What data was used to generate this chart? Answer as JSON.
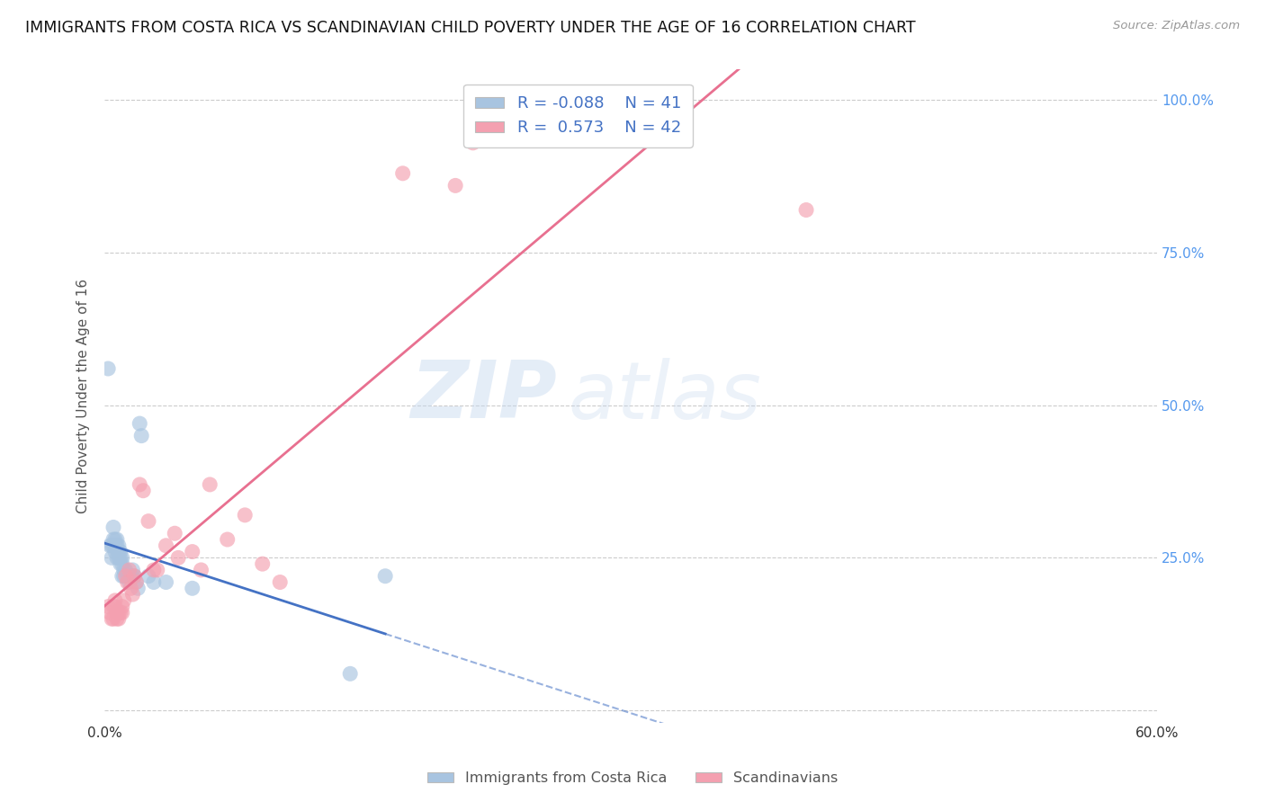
{
  "title": "IMMIGRANTS FROM COSTA RICA VS SCANDINAVIAN CHILD POVERTY UNDER THE AGE OF 16 CORRELATION CHART",
  "source": "Source: ZipAtlas.com",
  "ylabel": "Child Poverty Under the Age of 16",
  "xlim": [
    0.0,
    0.6
  ],
  "ylim": [
    -0.02,
    1.05
  ],
  "x_ticks": [
    0.0,
    0.1,
    0.2,
    0.3,
    0.4,
    0.5,
    0.6
  ],
  "x_tick_labels": [
    "0.0%",
    "",
    "",
    "",
    "",
    "",
    "60.0%"
  ],
  "y_ticks": [
    0.0,
    0.25,
    0.5,
    0.75,
    1.0
  ],
  "y_tick_labels_right": [
    "",
    "25.0%",
    "50.0%",
    "75.0%",
    "100.0%"
  ],
  "blue_R": "-0.088",
  "blue_N": "41",
  "pink_R": "0.573",
  "pink_N": "42",
  "blue_color": "#a8c4e0",
  "pink_color": "#f4a0b0",
  "blue_line_color": "#4472c4",
  "pink_line_color": "#e87090",
  "blue_scatter": [
    [
      0.002,
      0.56
    ],
    [
      0.003,
      0.27
    ],
    [
      0.004,
      0.27
    ],
    [
      0.004,
      0.25
    ],
    [
      0.005,
      0.3
    ],
    [
      0.005,
      0.28
    ],
    [
      0.005,
      0.27
    ],
    [
      0.006,
      0.28
    ],
    [
      0.006,
      0.27
    ],
    [
      0.006,
      0.26
    ],
    [
      0.007,
      0.28
    ],
    [
      0.007,
      0.27
    ],
    [
      0.007,
      0.25
    ],
    [
      0.008,
      0.27
    ],
    [
      0.008,
      0.26
    ],
    [
      0.008,
      0.25
    ],
    [
      0.009,
      0.26
    ],
    [
      0.009,
      0.25
    ],
    [
      0.009,
      0.24
    ],
    [
      0.01,
      0.25
    ],
    [
      0.01,
      0.24
    ],
    [
      0.01,
      0.22
    ],
    [
      0.011,
      0.23
    ],
    [
      0.011,
      0.22
    ],
    [
      0.012,
      0.23
    ],
    [
      0.013,
      0.22
    ],
    [
      0.014,
      0.21
    ],
    [
      0.015,
      0.22
    ],
    [
      0.016,
      0.23
    ],
    [
      0.016,
      0.22
    ],
    [
      0.017,
      0.22
    ],
    [
      0.018,
      0.21
    ],
    [
      0.019,
      0.2
    ],
    [
      0.02,
      0.47
    ],
    [
      0.021,
      0.45
    ],
    [
      0.025,
      0.22
    ],
    [
      0.028,
      0.21
    ],
    [
      0.035,
      0.21
    ],
    [
      0.05,
      0.2
    ],
    [
      0.14,
      0.06
    ],
    [
      0.16,
      0.22
    ]
  ],
  "pink_scatter": [
    [
      0.002,
      0.17
    ],
    [
      0.003,
      0.16
    ],
    [
      0.004,
      0.15
    ],
    [
      0.005,
      0.17
    ],
    [
      0.005,
      0.15
    ],
    [
      0.006,
      0.18
    ],
    [
      0.006,
      0.17
    ],
    [
      0.007,
      0.16
    ],
    [
      0.007,
      0.15
    ],
    [
      0.008,
      0.15
    ],
    [
      0.008,
      0.16
    ],
    [
      0.009,
      0.16
    ],
    [
      0.01,
      0.17
    ],
    [
      0.01,
      0.16
    ],
    [
      0.011,
      0.18
    ],
    [
      0.012,
      0.22
    ],
    [
      0.013,
      0.21
    ],
    [
      0.014,
      0.23
    ],
    [
      0.015,
      0.2
    ],
    [
      0.016,
      0.19
    ],
    [
      0.017,
      0.22
    ],
    [
      0.018,
      0.21
    ],
    [
      0.02,
      0.37
    ],
    [
      0.022,
      0.36
    ],
    [
      0.025,
      0.31
    ],
    [
      0.028,
      0.23
    ],
    [
      0.03,
      0.23
    ],
    [
      0.035,
      0.27
    ],
    [
      0.04,
      0.29
    ],
    [
      0.042,
      0.25
    ],
    [
      0.05,
      0.26
    ],
    [
      0.055,
      0.23
    ],
    [
      0.06,
      0.37
    ],
    [
      0.07,
      0.28
    ],
    [
      0.08,
      0.32
    ],
    [
      0.09,
      0.24
    ],
    [
      0.1,
      0.21
    ],
    [
      0.17,
      0.88
    ],
    [
      0.2,
      0.86
    ],
    [
      0.21,
      0.93
    ],
    [
      0.31,
      1.01
    ],
    [
      0.4,
      0.82
    ]
  ],
  "watermark_zip": "ZIP",
  "watermark_atlas": "atlas",
  "background_color": "#ffffff",
  "grid_color": "#cccccc"
}
